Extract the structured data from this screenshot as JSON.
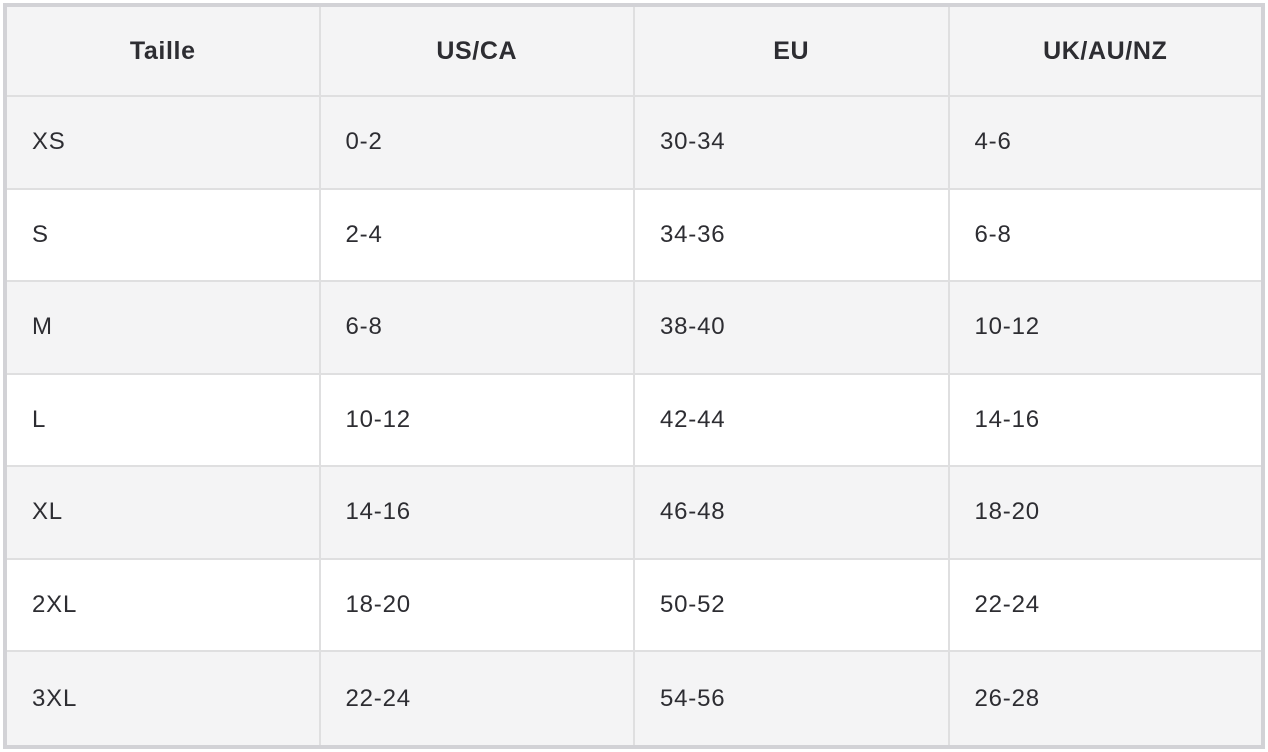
{
  "chart_data": {
    "type": "table",
    "columns": [
      "Taille",
      "US/CA",
      "EU",
      "UK/AU/NZ"
    ],
    "rows": [
      [
        "XS",
        "0-2",
        "30-34",
        "4-6"
      ],
      [
        "S",
        "2-4",
        "34-36",
        "6-8"
      ],
      [
        "M",
        "6-8",
        "38-40",
        "10-12"
      ],
      [
        "L",
        "10-12",
        "42-44",
        "14-16"
      ],
      [
        "XL",
        "14-16",
        "46-48",
        "18-20"
      ],
      [
        "2XL",
        "18-20",
        "50-52",
        "22-24"
      ],
      [
        "3XL",
        "22-24",
        "54-56",
        "26-28"
      ]
    ],
    "highlighted_sizes": [
      "XS",
      "3XL"
    ],
    "layout": {
      "header_align": "center",
      "body_align": "left",
      "striped_row_indices": [
        0,
        2,
        4,
        6
      ],
      "legend_position": "none",
      "grid": "on"
    }
  },
  "colors": {
    "highlight_green": "#d3f3e2",
    "stripe_gray": "#f4f4f5",
    "row_white": "#ffffff",
    "header_bg": "#f4f4f5",
    "inner_border": "#dfdfe0",
    "outer_border": "#d2d2d6",
    "text": "#2d2d32"
  }
}
